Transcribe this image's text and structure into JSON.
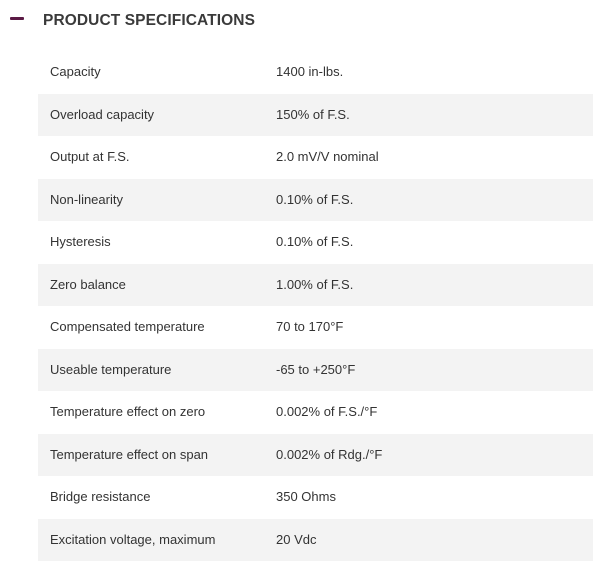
{
  "section": {
    "title": "PRODUCT SPECIFICATIONS",
    "icon": "minus-icon",
    "accent_color": "#5b1a45"
  },
  "specs": [
    {
      "label": "Capacity",
      "value": "1400 in-lbs."
    },
    {
      "label": "Overload capacity",
      "value": "150% of F.S."
    },
    {
      "label": "Output at F.S.",
      "value": "2.0 mV/V nominal"
    },
    {
      "label": "Non-linearity",
      "value": "0.10% of F.S."
    },
    {
      "label": "Hysteresis",
      "value": "0.10% of F.S."
    },
    {
      "label": "Zero balance",
      "value": "1.00% of F.S."
    },
    {
      "label": "Compensated temperature",
      "value": "70 to 170°F"
    },
    {
      "label": "Useable temperature",
      "value": "-65 to +250°F"
    },
    {
      "label": "Temperature effect on zero",
      "value": "0.002% of F.S./°F"
    },
    {
      "label": "Temperature effect on span",
      "value": "0.002% of Rdg./°F"
    },
    {
      "label": "Bridge resistance",
      "value": "350 Ohms"
    },
    {
      "label": "Excitation voltage, maximum",
      "value": "20 Vdc"
    }
  ]
}
